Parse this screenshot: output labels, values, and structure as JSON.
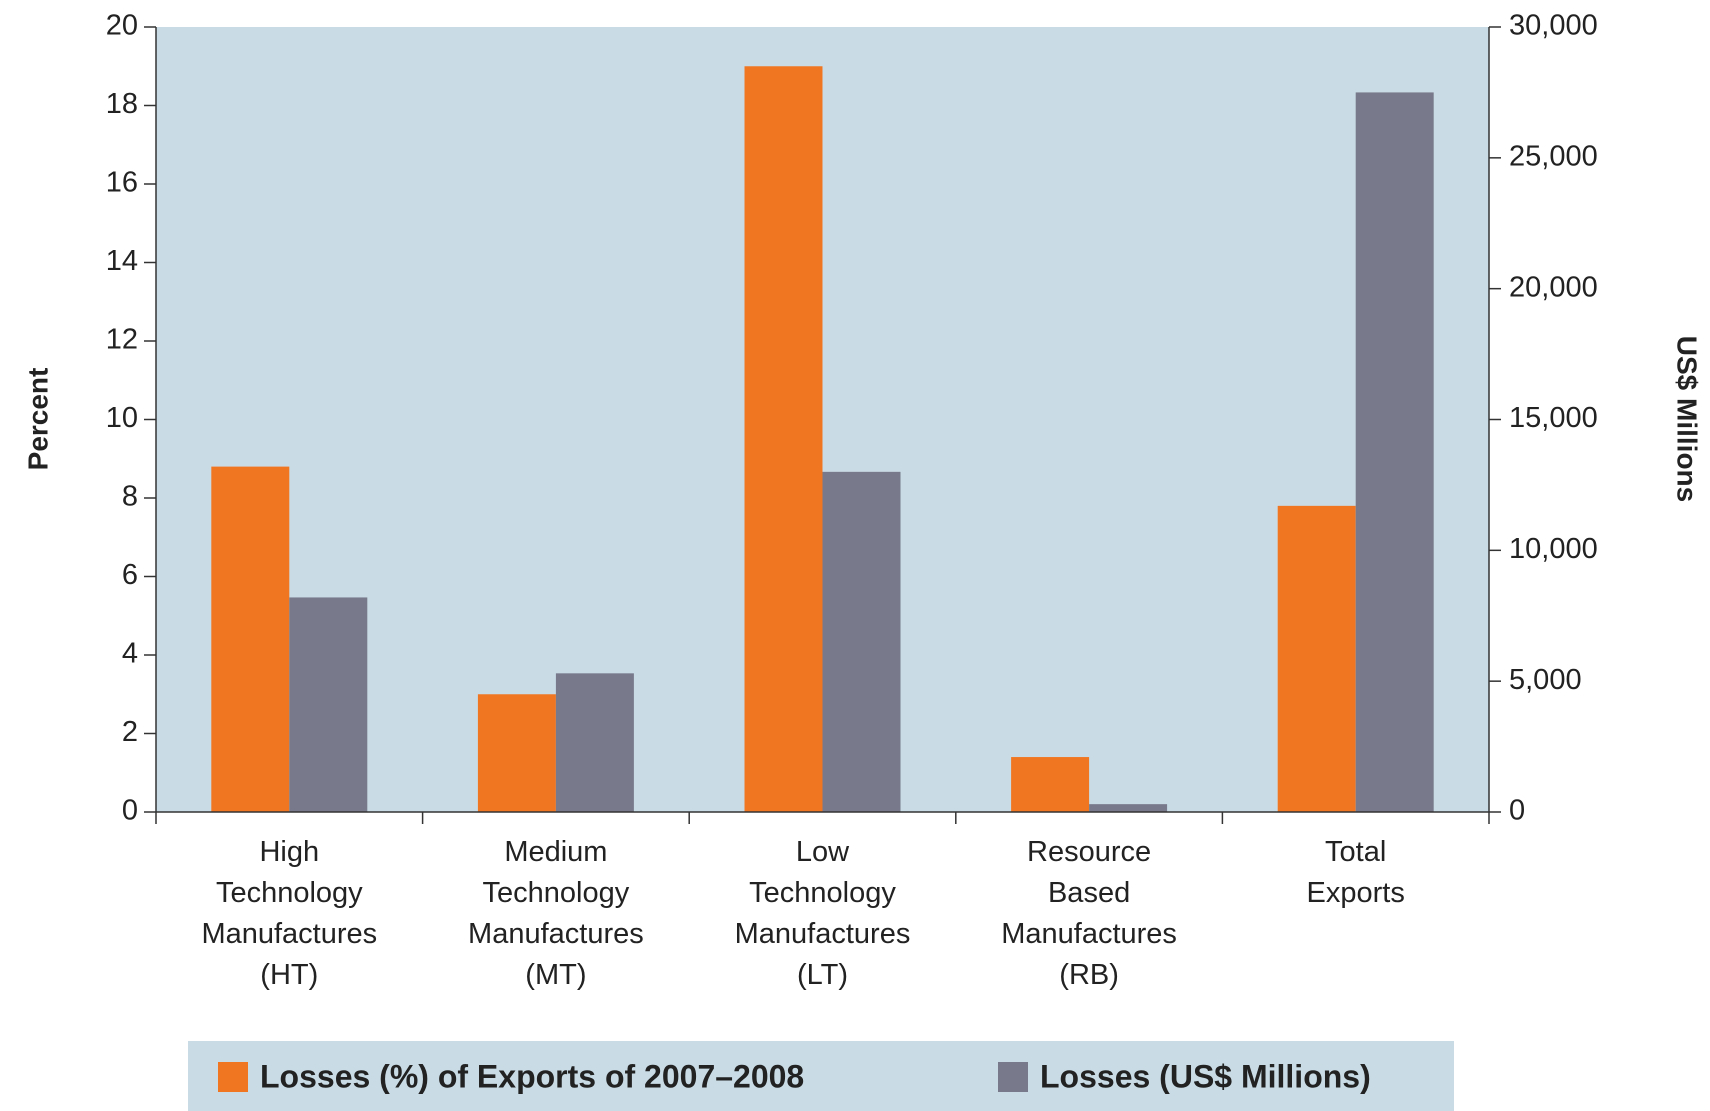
{
  "chart_data": {
    "type": "bar",
    "categories": [
      "High\nTechnology\nManufactures\n(HT)",
      "Medium\nTechnology\nManufactures\n(MT)",
      "Low\nTechnology\nManufactures\n(LT)",
      "Resource\nBased\nManufactures\n(RB)",
      "Total\nExports"
    ],
    "series": [
      {
        "name": "Losses (%) of Exports of 2007–2008",
        "color": "#f07622",
        "values": [
          8.8,
          3.0,
          19.0,
          1.4,
          7.8
        ]
      },
      {
        "name": "Losses (US$ Millions)",
        "color": "#787a8b",
        "axis": "y2",
        "values": [
          8200,
          5300,
          13000,
          300,
          27500
        ]
      }
    ],
    "ylabel": "Percent",
    "y2label": "US$ Millions",
    "ylim": [
      0,
      20
    ],
    "yticks": [
      0,
      2,
      4,
      6,
      8,
      10,
      12,
      14,
      16,
      18,
      20
    ],
    "y2lim": [
      0,
      30000
    ],
    "y2ticks": [
      0,
      {
        "value": 5000,
        "label": "5,000"
      },
      {
        "value": 10000,
        "label": "10,000"
      },
      {
        "value": 15000,
        "label": "15,000"
      },
      {
        "value": 20000,
        "label": "20,000"
      },
      {
        "value": 25000,
        "label": "25,000"
      },
      {
        "value": 30000,
        "label": "30,000"
      }
    ],
    "plot_background": "#c9dce6",
    "legend": "bottom"
  }
}
